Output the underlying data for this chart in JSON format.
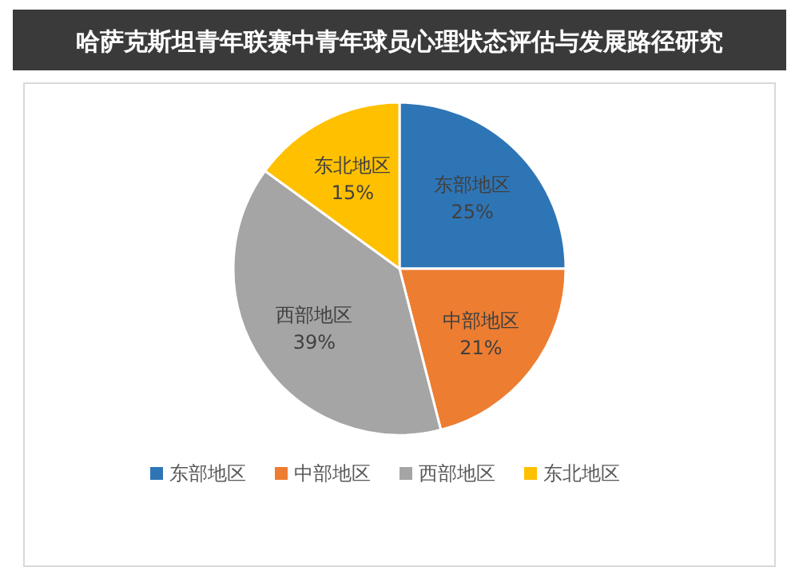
{
  "chart_data": {
    "type": "pie",
    "title": "哈萨克斯坦青年联赛中青年球员心理状态评估与发展路径研究",
    "categories": [
      "东部地区",
      "中部地区",
      "西部地区",
      "东北地区"
    ],
    "values": [
      25,
      21,
      39,
      15
    ],
    "colors": [
      "#2e75b6",
      "#ed7d31",
      "#a5a5a5",
      "#ffc000"
    ],
    "value_labels": [
      "25%",
      "21%",
      "39%",
      "15%"
    ],
    "legend": "bottom"
  }
}
